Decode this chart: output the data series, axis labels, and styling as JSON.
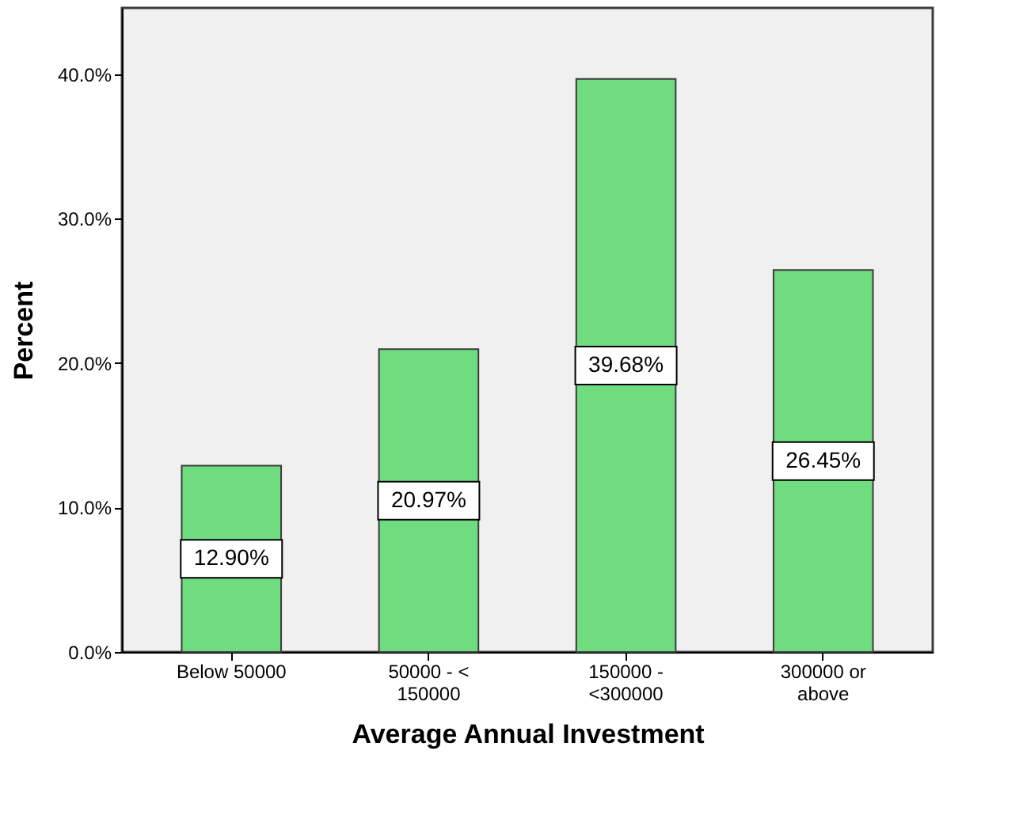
{
  "chart_data": {
    "type": "bar",
    "xlabel": "Average Annual Investment",
    "ylabel": "Percent",
    "categories": [
      "Below 50000",
      "50000 - <\n150000",
      "150000 -\n<300000",
      "300000 or\nabove"
    ],
    "values": [
      12.9,
      20.97,
      39.68,
      26.45
    ],
    "value_labels": [
      "12.90%",
      "20.97%",
      "39.68%",
      "26.45%"
    ],
    "color": "#6fdc80",
    "ylim": [
      0,
      44.6
    ],
    "yticks": [
      {
        "value": 0,
        "label": "0.0%"
      },
      {
        "value": 10,
        "label": "10.0%"
      },
      {
        "value": 20,
        "label": "20.0%"
      },
      {
        "value": 30,
        "label": "30.0%"
      },
      {
        "value": 40,
        "label": "40.0%"
      }
    ],
    "grid": false
  }
}
